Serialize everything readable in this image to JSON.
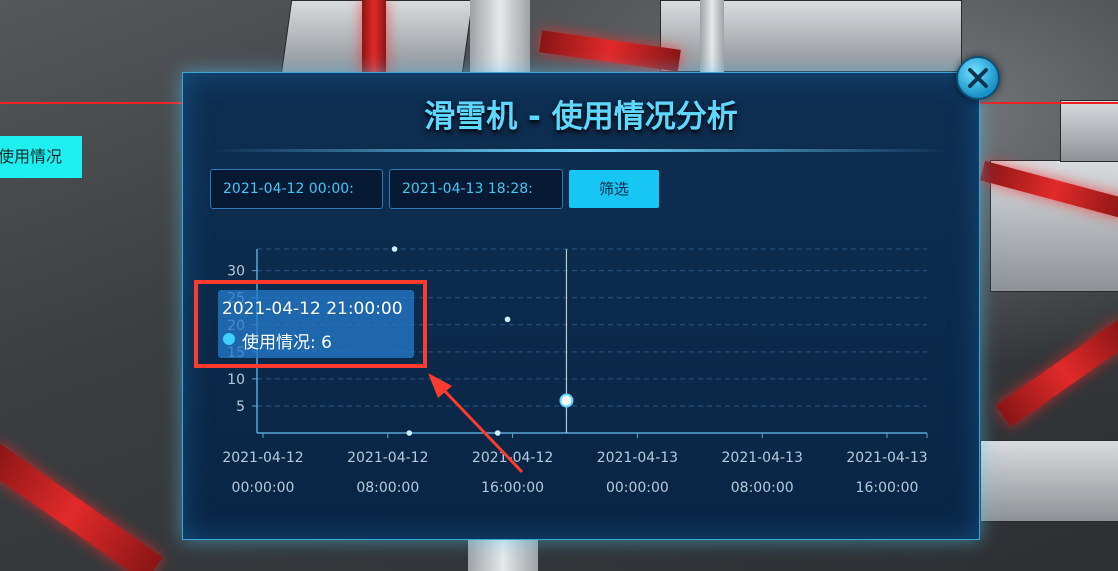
{
  "background": {
    "side_tag": "使用情况"
  },
  "modal": {
    "title": "滑雪机 - 使用情况分析",
    "start_time": "2021-04-12 00:00:",
    "end_time": "2021-04-13 18:28:",
    "filter_label": "筛选",
    "close_icon": "close-x-icon"
  },
  "tooltip": {
    "time": "2021-04-12 21:00:00",
    "series_label": "使用情况: 6"
  },
  "colors": {
    "accent": "#18c6f4",
    "panel": "#0a2545",
    "highlight": "#ff3b30"
  },
  "chart_data": {
    "type": "scatter",
    "x_ticks": [
      [
        "2021-04-12",
        "00:00:00"
      ],
      [
        "2021-04-12",
        "08:00:00"
      ],
      [
        "2021-04-12",
        "16:00:00"
      ],
      [
        "2021-04-13",
        "00:00:00"
      ],
      [
        "2021-04-13",
        "08:00:00"
      ],
      [
        "2021-04-13",
        "16:00:00"
      ]
    ],
    "x_range": [
      "2021-04-12 00:00",
      "2021-04-13 21:28"
    ],
    "y_ticks": [
      5,
      10,
      15,
      20,
      25,
      30
    ],
    "ylim": [
      0,
      34
    ],
    "grid": true,
    "series": [
      {
        "points": [
          {
            "x": "2021-04-12 09:20",
            "y": 34
          },
          {
            "x": "2021-04-12 10:20",
            "y": 0
          },
          {
            "x": "2021-04-12 16:20",
            "y": 0
          },
          {
            "x": "2021-04-12 17:00",
            "y": 21
          },
          {
            "x": "2021-04-12 21:00",
            "y": 6
          }
        ]
      }
    ],
    "highlight_x": "2021-04-12 21:00"
  }
}
